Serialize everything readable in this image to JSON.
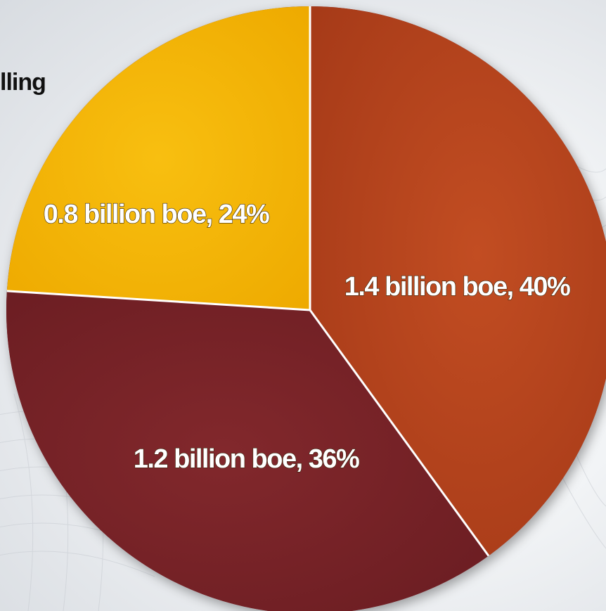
{
  "header_fragment": "lling",
  "colors": {
    "slice_1": "#b5431d",
    "slice_2": "#7a2328",
    "slice_3": "#f5b400",
    "divider": "#ffffff",
    "label_text": "#ffffff",
    "fragment_text": "#111111"
  },
  "chart_data": {
    "type": "pie",
    "categories": [
      "1.4 billion boe",
      "1.2 billion boe",
      "0.8 billion boe"
    ],
    "values": [
      1.4,
      1.2,
      0.8
    ],
    "unit": "billion boe",
    "percentages": [
      40,
      36,
      24
    ],
    "labels": [
      "1.4 billion boe, 40%",
      "1.2 billion boe, 36%",
      "0.8 billion boe, 24%"
    ],
    "start_angle_deg": 0,
    "direction": "clockwise",
    "legend": "none"
  }
}
